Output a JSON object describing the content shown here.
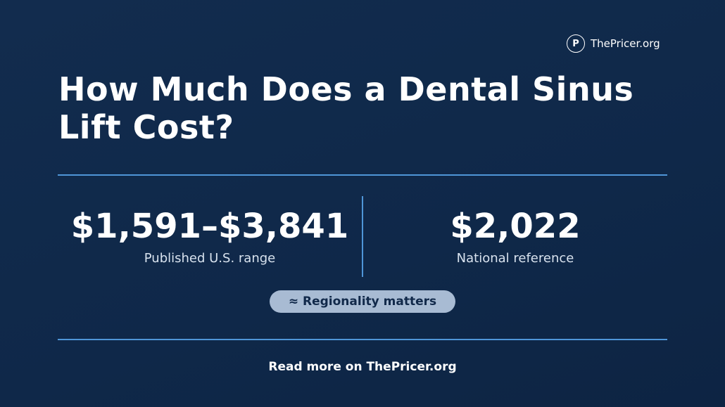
{
  "logo": {
    "mark": "P",
    "name": "ThePricer.org"
  },
  "title": "How Much Does a Dental Sinus Lift Cost?",
  "stats": [
    {
      "value": "$1,591–$3,841",
      "label": "Published U.S. range"
    },
    {
      "value": "$2,022",
      "label": "National reference"
    }
  ],
  "badge": "≈ Regionality matters",
  "footer": "Read more on ThePricer.org"
}
